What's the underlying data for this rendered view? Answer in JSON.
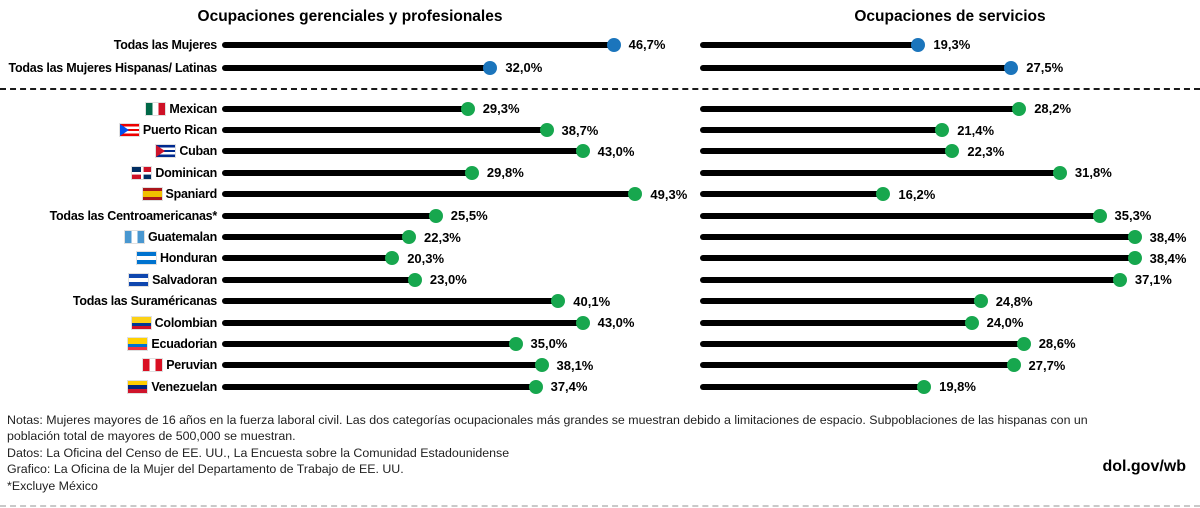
{
  "chart_data": {
    "type": "bar",
    "variant": "lollipop-dual-panel",
    "panels": [
      {
        "title": "Ocupaciones gerenciales y profesionales",
        "xlim": [
          0,
          57
        ]
      },
      {
        "title": "Ocupaciones de servicios",
        "xlim": [
          0,
          44
        ]
      }
    ],
    "unit": "%",
    "grid": false,
    "legend": "none",
    "bar_color": "#000000",
    "totals_dot_color": "#1b75bc",
    "groups_dot_color": "#17a74e",
    "rows": [
      {
        "label": "Todas las Mujeres",
        "flag": null,
        "section": "totals",
        "values": [
          46.7,
          19.3
        ],
        "value_labels": [
          "46,7%",
          "19,3%"
        ]
      },
      {
        "label": "Todas las Mujeres Hispanas/ Latinas",
        "flag": null,
        "section": "totals",
        "values": [
          32.0,
          27.5
        ],
        "value_labels": [
          "32,0%",
          "27,5%"
        ]
      },
      {
        "label": "Mexican",
        "flag": "mexico",
        "section": "groups",
        "values": [
          29.3,
          28.2
        ],
        "value_labels": [
          "29,3%",
          "28,2%"
        ]
      },
      {
        "label": "Puerto Rican",
        "flag": "puerto-rico",
        "section": "groups",
        "values": [
          38.7,
          21.4
        ],
        "value_labels": [
          "38,7%",
          "21,4%"
        ]
      },
      {
        "label": "Cuban",
        "flag": "cuba",
        "section": "groups",
        "values": [
          43.0,
          22.3
        ],
        "value_labels": [
          "43,0%",
          "22,3%"
        ]
      },
      {
        "label": "Dominican",
        "flag": "dominican-republic",
        "section": "groups",
        "values": [
          29.8,
          31.8
        ],
        "value_labels": [
          "29,8%",
          "31,8%"
        ]
      },
      {
        "label": "Spaniard",
        "flag": "spain",
        "section": "groups",
        "values": [
          49.3,
          16.2
        ],
        "value_labels": [
          "49,3%",
          "16,2%"
        ]
      },
      {
        "label": "Todas las Centroamericanas*",
        "flag": null,
        "section": "groups",
        "values": [
          25.5,
          35.3
        ],
        "value_labels": [
          "25,5%",
          "35,3%"
        ]
      },
      {
        "label": "Guatemalan",
        "flag": "guatemala",
        "section": "groups",
        "values": [
          22.3,
          38.4
        ],
        "value_labels": [
          "22,3%",
          "38,4%"
        ]
      },
      {
        "label": "Honduran",
        "flag": "honduras",
        "section": "groups",
        "values": [
          20.3,
          38.4
        ],
        "value_labels": [
          "20,3%",
          "38,4%"
        ]
      },
      {
        "label": "Salvadoran",
        "flag": "el-salvador",
        "section": "groups",
        "values": [
          23.0,
          37.1
        ],
        "value_labels": [
          "23,0%",
          "37,1%"
        ]
      },
      {
        "label": "Todas las Suraméricanas",
        "flag": null,
        "section": "groups",
        "values": [
          40.1,
          24.8
        ],
        "value_labels": [
          "40,1%",
          "24,8%"
        ]
      },
      {
        "label": "Colombian",
        "flag": "colombia",
        "section": "groups",
        "values": [
          43.0,
          24.0
        ],
        "value_labels": [
          "43,0%",
          "24,0%"
        ]
      },
      {
        "label": "Ecuadorian",
        "flag": "ecuador",
        "section": "groups",
        "values": [
          35.0,
          28.6
        ],
        "value_labels": [
          "35,0%",
          "28,6%"
        ]
      },
      {
        "label": "Peruvian",
        "flag": "peru",
        "section": "groups",
        "values": [
          38.1,
          27.7
        ],
        "value_labels": [
          "38,1%",
          "27,7%"
        ]
      },
      {
        "label": "Venezuelan",
        "flag": "venezuela",
        "section": "groups",
        "values": [
          37.4,
          19.8
        ],
        "value_labels": [
          "37,4%",
          "19,8%"
        ]
      }
    ]
  },
  "notes": [
    "Notas: Mujeres mayores de 16 años en la fuerza laboral civil. Las dos categorías ocupacionales más grandes se muestran debido a limitaciones de espacio. Subpoblaciones de las hispanas con un población total de mayores de 500,000 se muestran.",
    "Datos: La Oficina del Censo de EE. UU., La Encuesta sobre la Comunidad Estadounidense",
    "Grafico: La Oficina de la Mujer del Departamento de Trabajo de EE. UU.",
    "*Excluye México"
  ],
  "footer": {
    "brand": "dol.gov/wb"
  }
}
